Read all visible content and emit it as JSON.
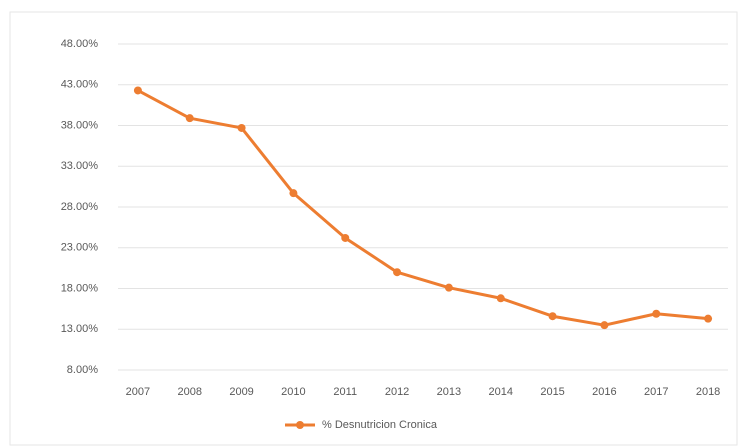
{
  "chart_data": {
    "type": "line",
    "categories": [
      "2007",
      "2008",
      "2009",
      "2010",
      "2011",
      "2012",
      "2013",
      "2014",
      "2015",
      "2016",
      "2017",
      "2018"
    ],
    "series": [
      {
        "name": "% Desnutricion Cronica",
        "color": "#ED7D31",
        "values": [
          42.3,
          38.9,
          37.7,
          29.7,
          24.2,
          20.0,
          18.1,
          16.8,
          14.6,
          13.5,
          14.9,
          14.3
        ]
      }
    ],
    "ylim": [
      8,
      48
    ],
    "yticks": [
      {
        "value": 8,
        "label": "8.00%"
      },
      {
        "value": 13,
        "label": "13.00%"
      },
      {
        "value": 18,
        "label": "18.00%"
      },
      {
        "value": 23,
        "label": "23.00%"
      },
      {
        "value": 28,
        "label": "28.00%"
      },
      {
        "value": 33,
        "label": "33.00%"
      },
      {
        "value": 38,
        "label": "38.00%"
      },
      {
        "value": 43,
        "label": "43.00%"
      },
      {
        "value": 48,
        "label": "48.00%"
      }
    ],
    "grid": true,
    "legend": "bottom"
  }
}
